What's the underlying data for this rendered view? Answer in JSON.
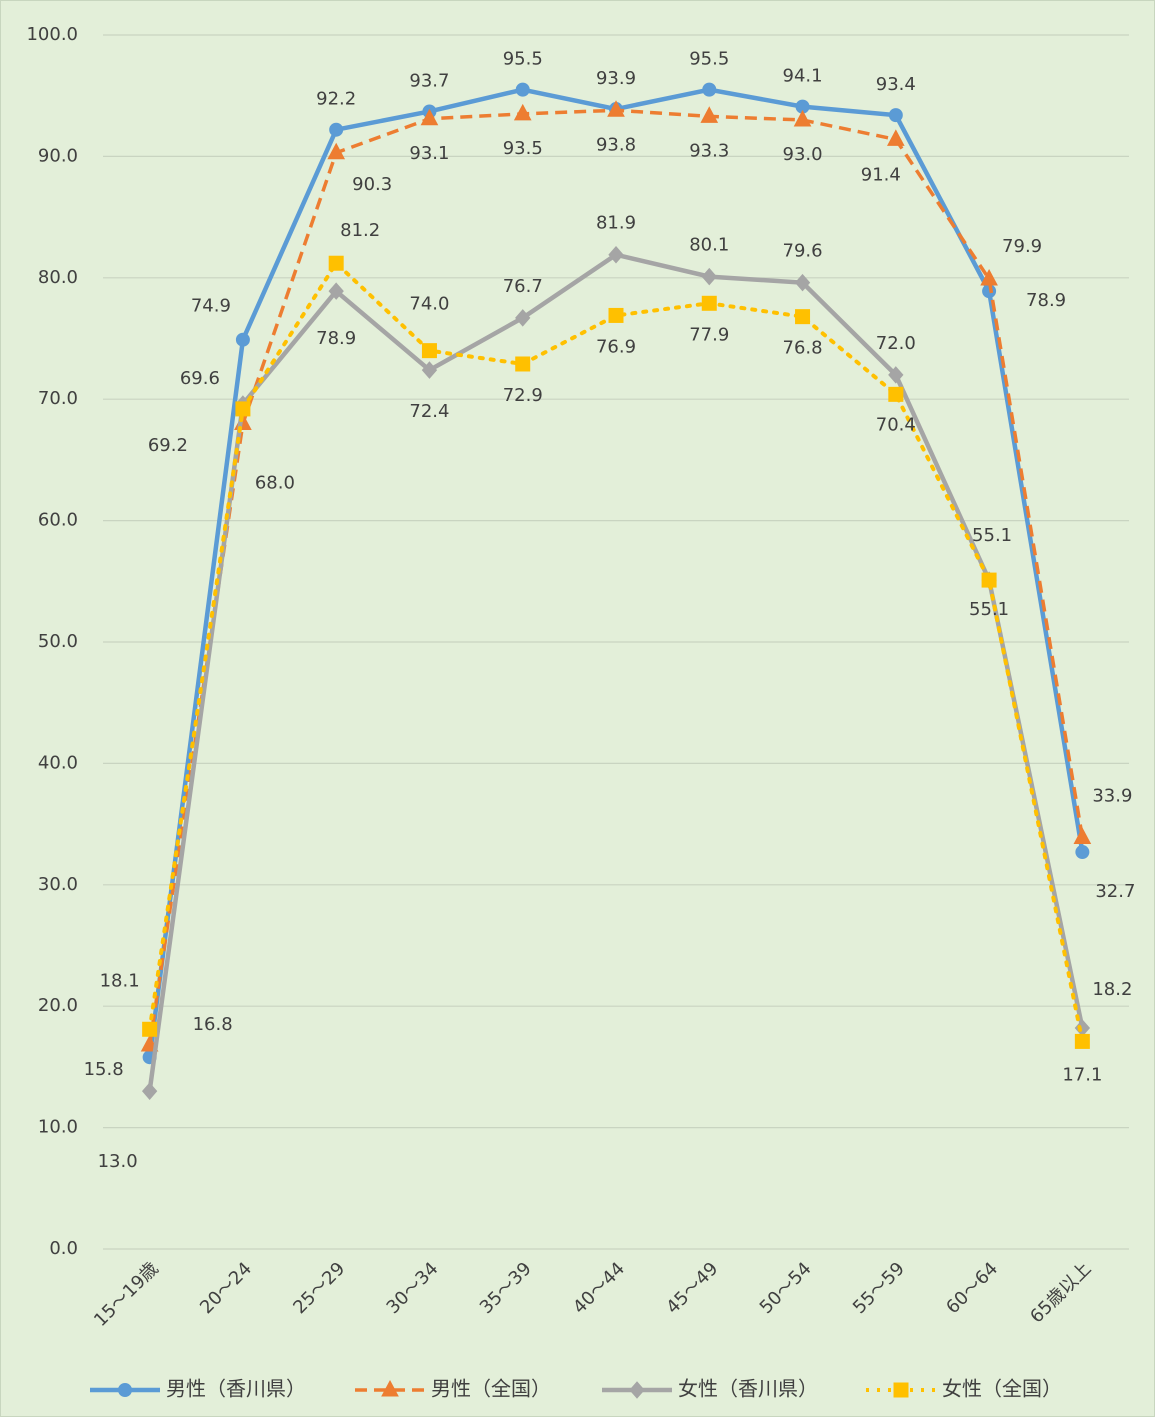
{
  "chart_data": {
    "type": "line",
    "categories": [
      "15～19歳",
      "20～24",
      "25～29",
      "30～34",
      "35～39",
      "40～44",
      "45～49",
      "50～54",
      "55～59",
      "60～64",
      "65歳以上"
    ],
    "ylim": [
      0,
      100
    ],
    "yticks": [
      {
        "value": 0,
        "label": "0.0"
      },
      {
        "value": 10,
        "label": "10.0"
      },
      {
        "value": 20,
        "label": "20.0"
      },
      {
        "value": 30,
        "label": "30.0"
      },
      {
        "value": 40,
        "label": "40.0"
      },
      {
        "value": 50,
        "label": "50.0"
      },
      {
        "value": 60,
        "label": "60.0"
      },
      {
        "value": 70,
        "label": "70.0"
      },
      {
        "value": 80,
        "label": "80.0"
      },
      {
        "value": 90,
        "label": "90.0"
      },
      {
        "value": 100,
        "label": "100.0"
      }
    ],
    "grid": true,
    "legend": "bottom",
    "series": [
      {
        "name": "男性（香川県）",
        "color": "#5b9bd5",
        "marker": "circle",
        "dash": "solid",
        "values": [
          15.8,
          74.9,
          92.2,
          93.7,
          95.5,
          93.9,
          95.5,
          94.1,
          93.4,
          78.9,
          32.7
        ],
        "value_labels": [
          "15.8",
          "74.9",
          "92.2",
          "93.7",
          "95.5",
          "93.9",
          "95.5",
          "94.1",
          "93.4",
          "78.9",
          "32.7"
        ]
      },
      {
        "name": "男性（全国）",
        "color": "#ed7d31",
        "marker": "triangle",
        "dash": "dashed",
        "values": [
          16.8,
          68.0,
          90.3,
          93.1,
          93.5,
          93.8,
          93.3,
          93.0,
          91.4,
          79.9,
          33.9
        ],
        "value_labels": [
          "16.8",
          "68.0",
          "90.3",
          "93.1",
          "93.5",
          "93.8",
          "93.3",
          "93.0",
          "91.4",
          "79.9",
          "33.9"
        ]
      },
      {
        "name": "女性（香川県）",
        "color": "#a5a5a5",
        "marker": "diamond",
        "dash": "solid",
        "values": [
          13.0,
          69.6,
          78.9,
          72.4,
          76.7,
          81.9,
          80.1,
          79.6,
          72.0,
          55.1,
          18.2
        ],
        "value_labels": [
          "13.0",
          "69.6",
          "78.9",
          "72.4",
          "76.7",
          "81.9",
          "80.1",
          "79.6",
          "72.0",
          "55.1",
          "18.2"
        ]
      },
      {
        "name": "女性（全国）",
        "color": "#ffc000",
        "marker": "square",
        "dash": "dotted",
        "values": [
          18.1,
          69.2,
          81.2,
          74.0,
          72.9,
          76.9,
          77.9,
          76.8,
          70.4,
          55.1,
          17.1
        ],
        "value_labels": [
          "18.1",
          "69.2",
          "81.2",
          "74.0",
          "72.9",
          "76.9",
          "77.9",
          "76.8",
          "70.4",
          "55.1",
          "17.1"
        ]
      }
    ]
  }
}
